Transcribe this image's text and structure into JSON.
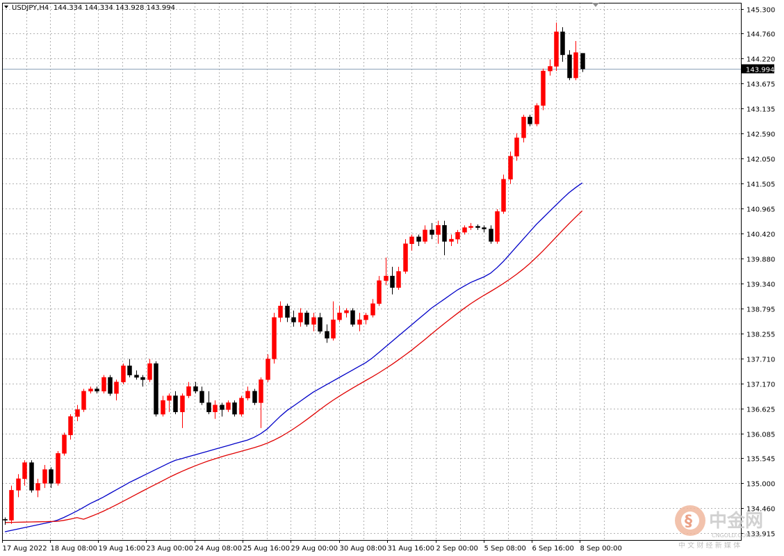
{
  "header": {
    "symbol": "USDJPY,H4",
    "quote": "144.334 144.334 143.928 143.994"
  },
  "current_price_label": "143.994",
  "watermark": {
    "brand_cn": "中金网",
    "brand_en": "CNGOLD.COM.CN",
    "tagline_cn": "中 文 财 经 新 媒 体",
    "logo_color": "#e35b2c"
  },
  "colors": {
    "bull": "#ff0000",
    "bear": "#000000",
    "ma_fast": "#0000c8",
    "ma_slow": "#e00000",
    "price_line": "#8aa0b8"
  },
  "chart_data": {
    "type": "candlestick",
    "y_ticks": [
      "145.300",
      "144.760",
      "144.220",
      "143.675",
      "143.135",
      "142.590",
      "142.050",
      "141.505",
      "140.965",
      "140.420",
      "139.880",
      "139.340",
      "138.795",
      "138.255",
      "137.710",
      "137.170",
      "136.625",
      "136.085",
      "135.545",
      "135.000",
      "134.460",
      "133.915"
    ],
    "x_ticks": [
      "17 Aug 2022",
      "18 Aug 08:00",
      "19 Aug 16:00",
      "23 Aug 00:00",
      "24 Aug 08:00",
      "25 Aug 16:00",
      "29 Aug 00:00",
      "30 Aug 08:00",
      "31 Aug 16:00",
      "2 Sep 00:00",
      "5 Sep 08:00",
      "6 Sep 16:00",
      "8 Sep 00:00"
    ],
    "ylim": [
      133.77,
      145.43
    ],
    "current_price": 143.994,
    "candles": [
      [
        134.22,
        134.26,
        134.1,
        134.2
      ],
      [
        134.2,
        134.95,
        134.12,
        134.85
      ],
      [
        134.85,
        135.2,
        134.7,
        135.1
      ],
      [
        135.1,
        135.5,
        134.95,
        135.45
      ],
      [
        135.45,
        135.5,
        134.8,
        134.85
      ],
      [
        134.85,
        135.1,
        134.7,
        135.0
      ],
      [
        135.0,
        135.4,
        134.9,
        135.3
      ],
      [
        135.3,
        135.35,
        134.9,
        135.0
      ],
      [
        135.0,
        135.7,
        134.95,
        135.65
      ],
      [
        135.65,
        136.1,
        135.6,
        136.05
      ],
      [
        136.05,
        136.5,
        135.95,
        136.45
      ],
      [
        136.45,
        136.7,
        136.35,
        136.6
      ],
      [
        136.6,
        137.05,
        136.55,
        137.0
      ],
      [
        137.0,
        137.1,
        136.95,
        137.05
      ],
      [
        137.05,
        137.1,
        136.95,
        137.0
      ],
      [
        137.0,
        137.35,
        136.95,
        137.3
      ],
      [
        137.3,
        137.35,
        136.9,
        136.95
      ],
      [
        136.95,
        137.25,
        136.8,
        137.2
      ],
      [
        137.2,
        137.6,
        137.15,
        137.55
      ],
      [
        137.55,
        137.7,
        137.3,
        137.35
      ],
      [
        137.35,
        137.45,
        137.25,
        137.3
      ],
      [
        137.3,
        137.35,
        137.1,
        137.25
      ],
      [
        137.25,
        137.7,
        137.2,
        137.6
      ],
      [
        137.6,
        137.65,
        136.45,
        136.5
      ],
      [
        136.5,
        136.9,
        136.45,
        136.8
      ],
      [
        136.8,
        136.95,
        136.55,
        136.9
      ],
      [
        136.9,
        137.0,
        136.5,
        136.55
      ],
      [
        136.55,
        136.95,
        136.2,
        136.9
      ],
      [
        136.9,
        137.2,
        136.85,
        137.1
      ],
      [
        137.1,
        137.2,
        136.95,
        137.0
      ],
      [
        137.0,
        137.1,
        136.7,
        136.75
      ],
      [
        136.75,
        137.0,
        136.5,
        136.55
      ],
      [
        136.55,
        136.8,
        136.4,
        136.7
      ],
      [
        136.7,
        136.75,
        136.45,
        136.6
      ],
      [
        136.6,
        136.8,
        136.55,
        136.75
      ],
      [
        136.75,
        136.8,
        136.45,
        136.5
      ],
      [
        136.5,
        136.9,
        136.45,
        136.85
      ],
      [
        136.85,
        137.1,
        136.8,
        137.0
      ],
      [
        137.0,
        137.05,
        136.7,
        136.75
      ],
      [
        136.75,
        137.3,
        136.2,
        137.25
      ],
      [
        137.25,
        137.8,
        137.2,
        137.7
      ],
      [
        137.7,
        138.7,
        137.6,
        138.6
      ],
      [
        138.6,
        138.95,
        138.5,
        138.85
      ],
      [
        138.85,
        138.9,
        138.5,
        138.6
      ],
      [
        138.6,
        138.75,
        138.4,
        138.5
      ],
      [
        138.5,
        138.8,
        138.4,
        138.7
      ],
      [
        138.7,
        138.75,
        138.4,
        138.45
      ],
      [
        138.45,
        138.7,
        138.3,
        138.6
      ],
      [
        138.6,
        138.7,
        138.25,
        138.3
      ],
      [
        138.3,
        138.45,
        138.05,
        138.15
      ],
      [
        138.15,
        138.95,
        138.1,
        138.55
      ],
      [
        138.55,
        138.85,
        138.5,
        138.7
      ],
      [
        138.7,
        138.8,
        138.6,
        138.75
      ],
      [
        138.75,
        138.8,
        138.4,
        138.45
      ],
      [
        138.45,
        138.7,
        138.3,
        138.55
      ],
      [
        138.55,
        138.7,
        138.45,
        138.65
      ],
      [
        138.65,
        139.0,
        138.6,
        138.9
      ],
      [
        138.9,
        139.5,
        138.85,
        139.4
      ],
      [
        139.4,
        139.9,
        139.3,
        139.5
      ],
      [
        139.5,
        139.7,
        139.1,
        139.25
      ],
      [
        139.25,
        139.7,
        139.2,
        139.6
      ],
      [
        139.6,
        140.3,
        139.55,
        140.2
      ],
      [
        140.2,
        140.4,
        140.05,
        140.35
      ],
      [
        140.35,
        140.4,
        140.15,
        140.25
      ],
      [
        140.25,
        140.6,
        140.2,
        140.5
      ],
      [
        140.5,
        140.65,
        140.3,
        140.4
      ],
      [
        140.4,
        140.7,
        140.2,
        140.6
      ],
      [
        140.6,
        140.7,
        139.95,
        140.25
      ],
      [
        140.25,
        140.4,
        140.15,
        140.3
      ],
      [
        140.3,
        140.5,
        140.2,
        140.45
      ],
      [
        140.45,
        140.6,
        140.4,
        140.55
      ],
      [
        140.55,
        140.65,
        140.5,
        140.58
      ],
      [
        140.58,
        140.62,
        140.5,
        140.55
      ],
      [
        140.55,
        140.6,
        140.45,
        140.52
      ],
      [
        140.52,
        140.6,
        140.2,
        140.25
      ],
      [
        140.25,
        140.95,
        140.2,
        140.9
      ],
      [
        140.9,
        141.7,
        140.85,
        141.6
      ],
      [
        141.6,
        142.2,
        141.5,
        142.1
      ],
      [
        142.1,
        142.6,
        142.0,
        142.5
      ],
      [
        142.5,
        143.0,
        142.4,
        142.95
      ],
      [
        142.95,
        143.0,
        142.75,
        142.8
      ],
      [
        142.8,
        143.25,
        142.75,
        143.2
      ],
      [
        143.2,
        144.0,
        143.1,
        143.95
      ],
      [
        143.95,
        144.2,
        143.85,
        144.05
      ],
      [
        144.05,
        145.0,
        143.95,
        144.8
      ],
      [
        144.8,
        144.9,
        144.15,
        144.3
      ],
      [
        144.3,
        144.4,
        143.75,
        143.8
      ],
      [
        143.8,
        144.6,
        143.75,
        144.35
      ],
      [
        144.334,
        144.334,
        143.928,
        143.994
      ]
    ],
    "ma_fast": [
      133.95,
      133.98,
      134.01,
      134.04,
      134.07,
      134.1,
      134.13,
      134.16,
      134.2,
      134.26,
      134.33,
      134.4,
      134.48,
      134.56,
      134.63,
      134.7,
      134.78,
      134.86,
      134.94,
      135.02,
      135.09,
      135.16,
      135.23,
      135.3,
      135.37,
      135.44,
      135.5,
      135.54,
      135.58,
      135.62,
      135.66,
      135.7,
      135.74,
      135.78,
      135.82,
      135.86,
      135.9,
      135.94,
      136.0,
      136.08,
      136.18,
      136.32,
      136.46,
      136.58,
      136.68,
      136.78,
      136.88,
      136.98,
      137.06,
      137.14,
      137.22,
      137.3,
      137.38,
      137.46,
      137.54,
      137.62,
      137.72,
      137.84,
      137.96,
      138.08,
      138.2,
      138.32,
      138.44,
      138.56,
      138.68,
      138.8,
      138.9,
      139.0,
      139.1,
      139.2,
      139.28,
      139.36,
      139.42,
      139.48,
      139.56,
      139.68,
      139.82,
      139.98,
      140.14,
      140.3,
      140.46,
      140.62,
      140.76,
      140.9,
      141.04,
      141.18,
      141.31,
      141.42,
      141.52
    ]
  }
}
